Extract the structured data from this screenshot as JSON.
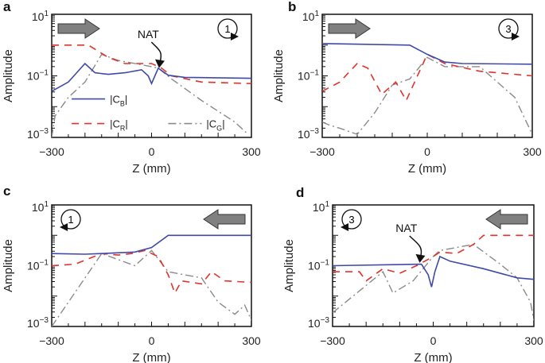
{
  "chart_data": [
    {
      "panel": "a",
      "type": "line",
      "xlabel": "Z (mm)",
      "ylabel": "Amplitude",
      "xlim": [
        -300,
        300
      ],
      "ylim": [
        0.001,
        10
      ],
      "yscale": "log",
      "xticks": [
        "−300",
        "0",
        "300"
      ],
      "yticks": [
        {
          "base": "10",
          "exp": "1"
        },
        {
          "base": "10",
          "exp": "−1"
        },
        {
          "base": "10",
          "exp": "−3"
        }
      ],
      "direction": "right",
      "step": "1",
      "annotation": "NAT",
      "legend": {
        "placement": "bottom-left",
        "entries": [
          {
            "base": "|C",
            "sub": "B",
            "end": "|"
          },
          {
            "base": "|C",
            "sub": "R",
            "end": "|"
          },
          {
            "base": "|C",
            "sub": "G",
            "end": "|"
          }
        ]
      },
      "value_units": "log10 amplitude",
      "series": [
        {
          "name": "|CB|",
          "points": [
            [
              -300,
              -1.5
            ],
            [
              -250,
              -1.2
            ],
            [
              -200,
              -0.6
            ],
            [
              -170,
              -0.9
            ],
            [
              -130,
              -0.95
            ],
            [
              -80,
              -0.9
            ],
            [
              -30,
              -0.8
            ],
            [
              -10,
              -1.0
            ],
            [
              0,
              -1.25
            ],
            [
              10,
              -1.0
            ],
            [
              20,
              -0.75
            ],
            [
              50,
              -0.98
            ],
            [
              100,
              -1.05
            ],
            [
              300,
              -1.08
            ]
          ]
        },
        {
          "name": "|CR|",
          "points": [
            [
              -300,
              0.0
            ],
            [
              -190,
              0.0
            ],
            [
              -130,
              -0.4
            ],
            [
              -80,
              -0.6
            ],
            [
              -30,
              -0.6
            ],
            [
              0,
              -0.6
            ],
            [
              30,
              -0.75
            ],
            [
              60,
              -1.0
            ],
            [
              150,
              -1.2
            ],
            [
              300,
              -1.25
            ]
          ]
        },
        {
          "name": "|CG|",
          "points": [
            [
              -300,
              -3
            ],
            [
              -290,
              -2.3
            ],
            [
              -250,
              -1.7
            ],
            [
              -200,
              -1.2
            ],
            [
              -150,
              -0.3
            ],
            [
              -100,
              -0.5
            ],
            [
              0,
              -0.7
            ],
            [
              20,
              -0.75
            ],
            [
              60,
              -1.1
            ],
            [
              150,
              -1.8
            ],
            [
              250,
              -2.5
            ],
            [
              290,
              -2.9
            ]
          ]
        }
      ]
    },
    {
      "panel": "b",
      "type": "line",
      "xlabel": "Z (mm)",
      "ylabel": "Amplitude",
      "xlim": [
        -300,
        300
      ],
      "ylim": [
        0.001,
        10
      ],
      "yscale": "log",
      "xticks": [
        "−300",
        "0",
        "300"
      ],
      "yticks": [
        {
          "base": "10",
          "exp": "1"
        },
        {
          "base": "10",
          "exp": "−1"
        },
        {
          "base": "10",
          "exp": "−3"
        }
      ],
      "direction": "right",
      "step": "3",
      "value_units": "log10 amplitude",
      "series": [
        {
          "name": "|CB|",
          "points": [
            [
              -300,
              0.05
            ],
            [
              -50,
              0.0
            ],
            [
              0,
              -0.3
            ],
            [
              50,
              -0.55
            ],
            [
              100,
              -0.6
            ],
            [
              300,
              -0.62
            ]
          ]
        },
        {
          "name": "|CR|",
          "points": [
            [
              -300,
              -1.5
            ],
            [
              -250,
              -1.2
            ],
            [
              -200,
              -0.6
            ],
            [
              -170,
              -0.75
            ],
            [
              -130,
              -1.6
            ],
            [
              -90,
              -1.2
            ],
            [
              -60,
              -1.8
            ],
            [
              0,
              -0.3
            ],
            [
              50,
              -0.6
            ],
            [
              150,
              -0.85
            ],
            [
              300,
              -1.0
            ]
          ]
        },
        {
          "name": "|CG|",
          "points": [
            [
              -300,
              -2.5
            ],
            [
              -280,
              -2.6
            ],
            [
              -250,
              -2.7
            ],
            [
              -200,
              -2.9
            ],
            [
              -150,
              -2.2
            ],
            [
              -100,
              -1.3
            ],
            [
              -50,
              -1.1
            ],
            [
              0,
              -0.4
            ],
            [
              50,
              -0.7
            ],
            [
              150,
              -0.7
            ],
            [
              250,
              -1.7
            ],
            [
              300,
              -2.9
            ]
          ]
        }
      ]
    },
    {
      "panel": "c",
      "type": "line",
      "xlabel": "Z (mm)",
      "ylabel": "Amplitude",
      "xlim": [
        -300,
        300
      ],
      "ylim": [
        0.001,
        10
      ],
      "yscale": "log",
      "xticks": [
        "−300",
        "0",
        "300"
      ],
      "yticks": [
        {
          "base": "10",
          "exp": "1"
        },
        {
          "base": "10",
          "exp": "−1"
        },
        {
          "base": "10",
          "exp": "−3"
        }
      ],
      "direction": "left",
      "step": "1",
      "value_units": "log10 amplitude",
      "series": [
        {
          "name": "|CB|",
          "points": [
            [
              -300,
              -0.6
            ],
            [
              -200,
              -0.62
            ],
            [
              -150,
              -0.6
            ],
            [
              -50,
              -0.55
            ],
            [
              0,
              -0.4
            ],
            [
              50,
              0.0
            ],
            [
              300,
              0.0
            ]
          ]
        },
        {
          "name": "|CR|",
          "points": [
            [
              -300,
              -1.0
            ],
            [
              -230,
              -0.95
            ],
            [
              -150,
              -0.6
            ],
            [
              -100,
              -0.65
            ],
            [
              -60,
              -0.6
            ],
            [
              -20,
              -0.5
            ],
            [
              20,
              -0.7
            ],
            [
              50,
              -1.3
            ],
            [
              70,
              -1.9
            ],
            [
              90,
              -1.5
            ],
            [
              150,
              -1.6
            ],
            [
              180,
              -1.2
            ],
            [
              220,
              -1.5
            ],
            [
              300,
              -1.55
            ]
          ]
        },
        {
          "name": "|CG|",
          "points": [
            [
              -300,
              -3
            ],
            [
              -150,
              -0.6
            ],
            [
              -100,
              -0.8
            ],
            [
              -50,
              -1.0
            ],
            [
              0,
              -0.5
            ],
            [
              50,
              -1.2
            ],
            [
              100,
              -1.3
            ],
            [
              150,
              -1.4
            ],
            [
              200,
              -2.2
            ],
            [
              250,
              -2.6
            ],
            [
              280,
              -2.3
            ],
            [
              300,
              -2.8
            ]
          ]
        }
      ]
    },
    {
      "panel": "d",
      "type": "line",
      "xlabel": "Z (mm)",
      "ylabel": "Amplitude",
      "xlim": [
        -300,
        300
      ],
      "ylim": [
        0.001,
        10
      ],
      "yscale": "log",
      "xticks": [
        "−300",
        "0",
        "300"
      ],
      "yticks": [
        {
          "base": "10",
          "exp": "1"
        },
        {
          "base": "10",
          "exp": "−1"
        },
        {
          "base": "10",
          "exp": "−3"
        }
      ],
      "direction": "left",
      "step": "3",
      "annotation": "NAT",
      "value_units": "log10 amplitude",
      "series": [
        {
          "name": "|CB|",
          "points": [
            [
              -300,
              -1.0
            ],
            [
              -35,
              -0.95
            ],
            [
              -15,
              -1.3
            ],
            [
              -5,
              -1.7
            ],
            [
              5,
              -1.2
            ],
            [
              20,
              -0.7
            ],
            [
              50,
              -0.85
            ],
            [
              150,
              -1.1
            ],
            [
              250,
              -1.4
            ],
            [
              300,
              -1.45
            ]
          ]
        },
        {
          "name": "|CR|",
          "points": [
            [
              -300,
              -1.2
            ],
            [
              -220,
              -1.2
            ],
            [
              -200,
              -1.5
            ],
            [
              -150,
              -1.1
            ],
            [
              -100,
              -1.25
            ],
            [
              -50,
              -1.0
            ],
            [
              0,
              -0.7
            ],
            [
              20,
              -0.55
            ],
            [
              70,
              -0.6
            ],
            [
              120,
              -0.3
            ],
            [
              150,
              0.0
            ],
            [
              300,
              0.0
            ]
          ]
        },
        {
          "name": "|CG|",
          "points": [
            [
              -300,
              -2.55
            ],
            [
              -150,
              -1.2
            ],
            [
              -120,
              -1.9
            ],
            [
              -60,
              -1.5
            ],
            [
              0,
              -0.7
            ],
            [
              20,
              -0.5
            ],
            [
              120,
              -0.3
            ],
            [
              200,
              -0.95
            ],
            [
              250,
              -1.4
            ],
            [
              290,
              -2.2
            ],
            [
              300,
              -2.8
            ]
          ]
        }
      ]
    }
  ],
  "colors": {
    "CB": "#3f4aa8",
    "CR": "#e0332a",
    "CG": "#8a8a8a",
    "arrow": "#808080"
  }
}
